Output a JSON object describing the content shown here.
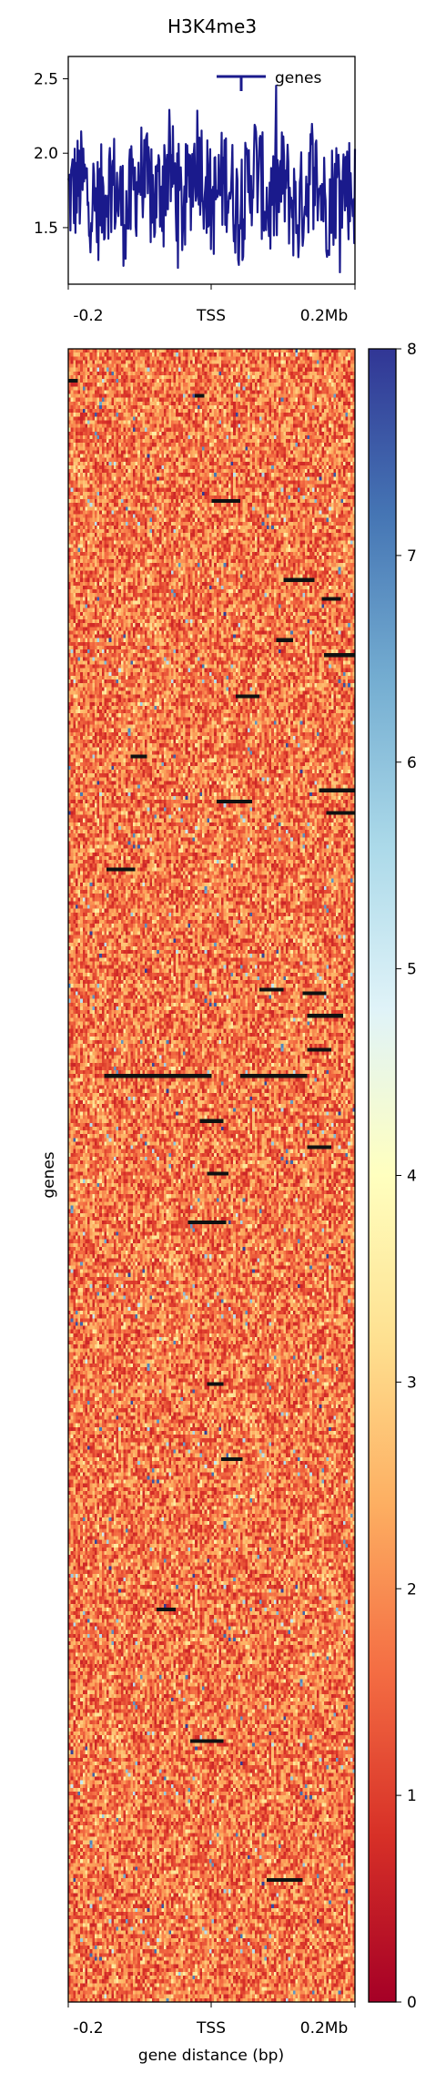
{
  "chart_data": [
    {
      "type": "line",
      "title": "H3K4me3",
      "xlabel": "",
      "ylabel": "",
      "x_ticks": [
        "-0.2",
        "TSS",
        "0.2Mb"
      ],
      "xlim": [
        -0.2,
        0.2
      ],
      "ylim": [
        1.12,
        2.65
      ],
      "y_ticks": [
        "1.5",
        "2.0",
        "2.5"
      ],
      "y_tick_values": [
        1.5,
        2.0,
        2.5
      ],
      "grid": false,
      "legend_position": "top-right",
      "series": [
        {
          "name": "genes",
          "color": "#1a1a8c",
          "mean": 1.72,
          "min": 1.2,
          "max": 2.6,
          "description_points": [
            {
              "x": -0.2,
              "y": 1.7
            },
            {
              "x": -0.18,
              "y": 1.95
            },
            {
              "x": -0.16,
              "y": 1.45
            },
            {
              "x": -0.14,
              "y": 2.05
            },
            {
              "x": -0.12,
              "y": 1.3
            },
            {
              "x": -0.1,
              "y": 2.15
            },
            {
              "x": -0.08,
              "y": 1.55
            },
            {
              "x": -0.06,
              "y": 2.3
            },
            {
              "x": -0.04,
              "y": 1.4
            },
            {
              "x": -0.02,
              "y": 2.6
            },
            {
              "x": 0.0,
              "y": 1.5
            },
            {
              "x": 0.02,
              "y": 2.1
            },
            {
              "x": 0.04,
              "y": 1.35
            },
            {
              "x": 0.06,
              "y": 2.35
            },
            {
              "x": 0.08,
              "y": 1.45
            },
            {
              "x": 0.1,
              "y": 2.0
            },
            {
              "x": 0.12,
              "y": 1.3
            },
            {
              "x": 0.14,
              "y": 2.25
            },
            {
              "x": 0.16,
              "y": 1.5
            },
            {
              "x": 0.18,
              "y": 2.05
            },
            {
              "x": 0.2,
              "y": 1.75
            }
          ]
        }
      ]
    },
    {
      "type": "heatmap",
      "xlabel": "gene distance (bp)",
      "ylabel": "genes",
      "x_ticks": [
        "-0.2",
        "TSS",
        "0.2Mb"
      ],
      "xlim": [
        -0.2,
        0.2
      ],
      "colormap": "RdYlBu",
      "value_range": [
        0,
        8
      ],
      "typical_value": 1.7,
      "colorbar_ticks": [
        "0",
        "1",
        "2",
        "3",
        "4",
        "5",
        "6",
        "7",
        "8"
      ],
      "colorbar_tick_values": [
        0,
        1,
        2,
        3,
        4,
        5,
        6,
        7,
        8
      ]
    }
  ]
}
